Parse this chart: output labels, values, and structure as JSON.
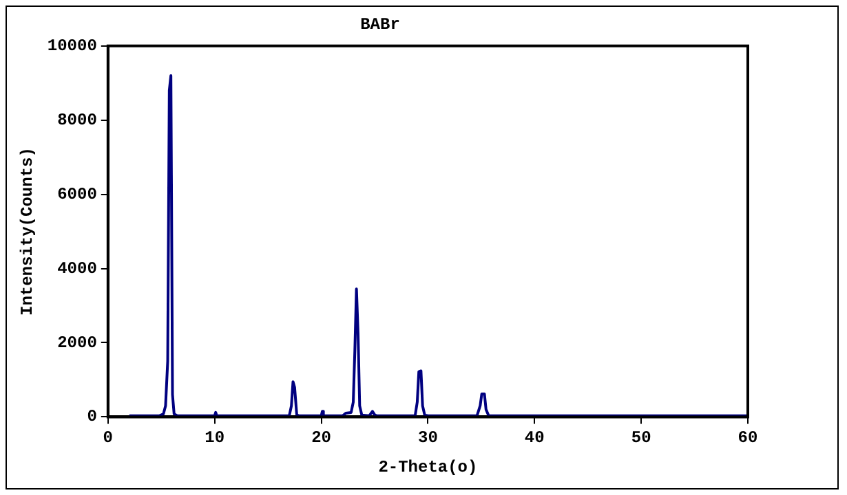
{
  "chart_data": {
    "type": "line",
    "title": "BABr",
    "xlabel": "2-Theta(o)",
    "ylabel": "Intensity(Counts)",
    "xlim": [
      0,
      60
    ],
    "xticks": [
      0,
      10,
      20,
      30,
      40,
      50,
      60
    ],
    "ylim": [
      0,
      10000
    ],
    "yticks": [
      0,
      2000,
      4000,
      6000,
      8000,
      10000
    ],
    "grid": false,
    "legend": false,
    "marker": "none",
    "line_style": "solid",
    "series": [
      {
        "color": "#000080",
        "x": [
          2,
          4.8,
          5.2,
          5.4,
          5.6,
          5.75,
          5.9,
          6.05,
          6.2,
          6.5,
          10,
          10.1,
          10.2,
          17,
          17.2,
          17.35,
          17.5,
          17.7,
          17.9,
          20,
          20.1,
          20.2,
          22,
          22.3,
          22.8,
          23,
          23.15,
          23.3,
          23.45,
          23.6,
          23.8,
          24.5,
          24.8,
          25,
          25.2,
          28.8,
          29,
          29.15,
          29.35,
          29.5,
          29.7,
          30,
          34.6,
          34.9,
          35.05,
          35.3,
          35.45,
          35.7,
          60
        ],
        "values": [
          30,
          30,
          80,
          300,
          1500,
          8800,
          9200,
          600,
          80,
          30,
          30,
          120,
          30,
          30,
          300,
          950,
          800,
          60,
          30,
          30,
          150,
          30,
          30,
          100,
          120,
          400,
          1800,
          3450,
          2250,
          300,
          50,
          30,
          150,
          60,
          30,
          30,
          400,
          1220,
          1240,
          300,
          50,
          30,
          30,
          300,
          620,
          620,
          200,
          30,
          30
        ]
      }
    ]
  }
}
